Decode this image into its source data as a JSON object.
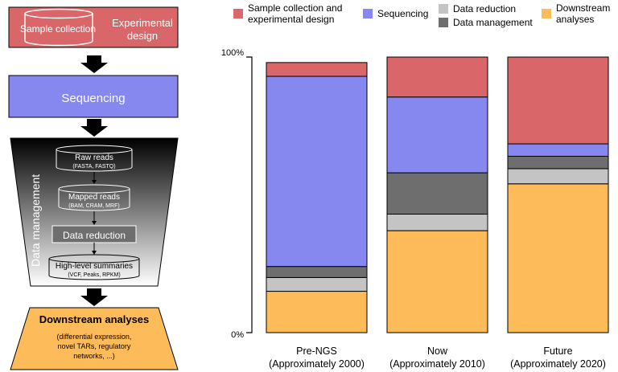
{
  "pipeline": {
    "sample_collection": "Sample collection",
    "experimental_design": "Experimental design",
    "sequencing": "Sequencing",
    "data_management": "Data management",
    "raw_reads": "Raw reads",
    "raw_reads_formats": "(FASTA, FASTQ)",
    "mapped_reads": "Mapped reads",
    "mapped_reads_formats": "(BAM, CRAM, MRF)",
    "data_reduction": "Data reduction",
    "high_level_summaries": "High-level summaries",
    "summaries_formats": "(VCF, Peaks, RPKM)",
    "downstream_analyses": "Downstream analyses",
    "downstream_details": [
      "(differential expression,",
      "novel TARs, regulatory",
      "networks, ...)"
    ]
  },
  "colors": {
    "sample_collection": "#d9676a",
    "sequencing": "#8787f0",
    "data_reduction": "#c4c4c4",
    "data_management": "#6e6e6e",
    "downstream": "#fdbb5a"
  },
  "chart_data": {
    "type": "bar",
    "stacked": true,
    "percent": true,
    "categories": [
      [
        "Pre-NGS",
        "(Approximately 2000)"
      ],
      [
        "Now",
        "(Approximately 2010)"
      ],
      [
        "Future",
        "(Approximately 2020)"
      ]
    ],
    "y_ticks": [
      "100%",
      "0%"
    ],
    "ylim": [
      0,
      100
    ],
    "legend": [
      {
        "label": [
          "Sample collection and",
          "experimental design"
        ],
        "color_key": "sample_collection"
      },
      {
        "label": [
          "Sequencing"
        ],
        "color_key": "sequencing"
      },
      {
        "label": [
          "Data reduction"
        ],
        "color_key": "data_reduction"
      },
      {
        "label": [
          "Data management"
        ],
        "color_key": "data_management"
      },
      {
        "label": [
          "Downstream",
          "analyses"
        ],
        "color_key": "downstream"
      }
    ],
    "series": [
      {
        "name": "Downstream analyses",
        "color_key": "downstream",
        "values": [
          15,
          37,
          54
        ]
      },
      {
        "name": "Data reduction",
        "color_key": "data_reduction",
        "values": [
          5,
          6,
          5.5
        ]
      },
      {
        "name": "Data management",
        "color_key": "data_management",
        "values": [
          4,
          15,
          4.5
        ]
      },
      {
        "name": "Sequencing",
        "color_key": "sequencing",
        "values": [
          69,
          27.5,
          4.5
        ]
      },
      {
        "name": "Sample collection and experimental design",
        "color_key": "sample_collection",
        "values": [
          5,
          14.5,
          31.5
        ]
      }
    ]
  }
}
